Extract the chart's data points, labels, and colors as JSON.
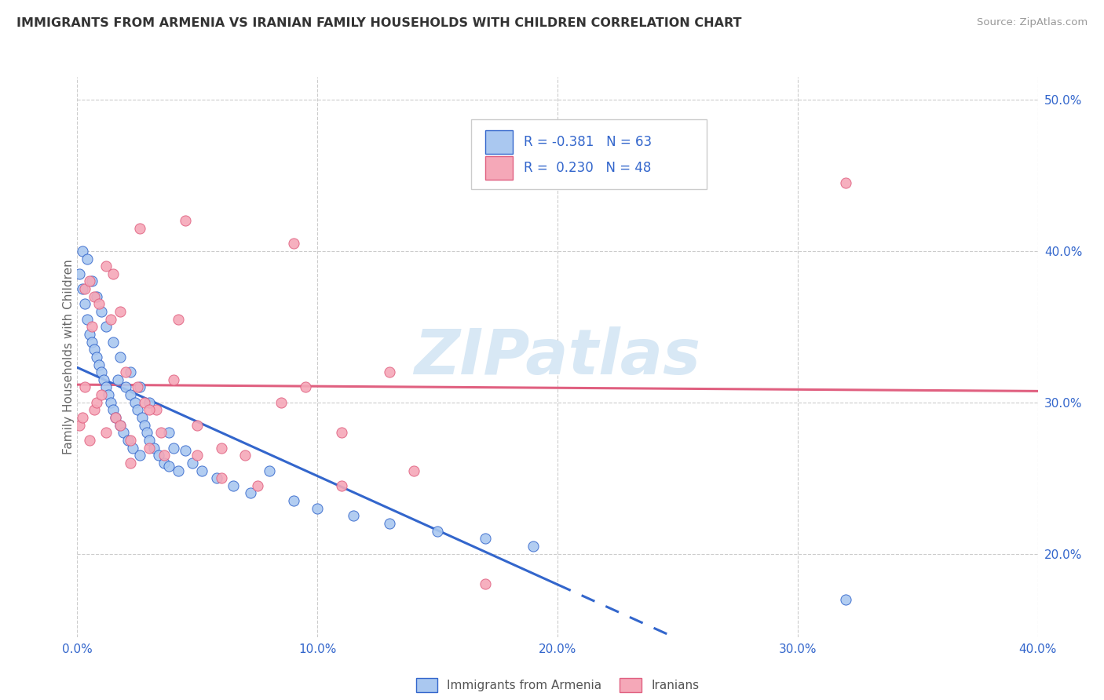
{
  "title": "IMMIGRANTS FROM ARMENIA VS IRANIAN FAMILY HOUSEHOLDS WITH CHILDREN CORRELATION CHART",
  "source": "Source: ZipAtlas.com",
  "ylabel_label": "Family Households with Children",
  "legend1_label": "R = -0.381   N = 63",
  "legend2_label": "R =  0.230   N = 48",
  "legend_bottom": [
    "Immigrants from Armenia",
    "Iranians"
  ],
  "armenia_color": "#aac8f0",
  "iran_color": "#f5a8b8",
  "armenia_line_color": "#3366cc",
  "iran_line_color": "#e06080",
  "background_color": "#ffffff",
  "grid_color": "#cccccc",
  "xlim": [
    0.0,
    0.4
  ],
  "ylim": [
    0.145,
    0.515
  ],
  "xticks": [
    0.0,
    0.1,
    0.2,
    0.3,
    0.4
  ],
  "yticks": [
    0.2,
    0.3,
    0.4,
    0.5
  ],
  "armenia_scatter_x": [
    0.001,
    0.002,
    0.003,
    0.004,
    0.005,
    0.006,
    0.007,
    0.008,
    0.009,
    0.01,
    0.011,
    0.012,
    0.013,
    0.014,
    0.015,
    0.016,
    0.017,
    0.018,
    0.019,
    0.02,
    0.021,
    0.022,
    0.023,
    0.024,
    0.025,
    0.026,
    0.027,
    0.028,
    0.029,
    0.03,
    0.032,
    0.034,
    0.036,
    0.038,
    0.04,
    0.042,
    0.045,
    0.048,
    0.052,
    0.058,
    0.065,
    0.072,
    0.08,
    0.09,
    0.1,
    0.115,
    0.13,
    0.15,
    0.17,
    0.19,
    0.002,
    0.004,
    0.006,
    0.008,
    0.01,
    0.012,
    0.015,
    0.018,
    0.022,
    0.026,
    0.03,
    0.038,
    0.32
  ],
  "armenia_scatter_y": [
    0.385,
    0.375,
    0.365,
    0.355,
    0.345,
    0.34,
    0.335,
    0.33,
    0.325,
    0.32,
    0.315,
    0.31,
    0.305,
    0.3,
    0.295,
    0.29,
    0.315,
    0.285,
    0.28,
    0.31,
    0.275,
    0.305,
    0.27,
    0.3,
    0.295,
    0.265,
    0.29,
    0.285,
    0.28,
    0.275,
    0.27,
    0.265,
    0.26,
    0.258,
    0.27,
    0.255,
    0.268,
    0.26,
    0.255,
    0.25,
    0.245,
    0.24,
    0.255,
    0.235,
    0.23,
    0.225,
    0.22,
    0.215,
    0.21,
    0.205,
    0.4,
    0.395,
    0.38,
    0.37,
    0.36,
    0.35,
    0.34,
    0.33,
    0.32,
    0.31,
    0.3,
    0.28,
    0.17
  ],
  "iran_scatter_x": [
    0.001,
    0.002,
    0.003,
    0.005,
    0.006,
    0.007,
    0.008,
    0.01,
    0.012,
    0.014,
    0.016,
    0.018,
    0.02,
    0.022,
    0.025,
    0.028,
    0.03,
    0.033,
    0.036,
    0.04,
    0.045,
    0.05,
    0.06,
    0.07,
    0.085,
    0.095,
    0.11,
    0.13,
    0.003,
    0.005,
    0.007,
    0.009,
    0.012,
    0.015,
    0.018,
    0.022,
    0.026,
    0.03,
    0.035,
    0.042,
    0.05,
    0.06,
    0.075,
    0.09,
    0.11,
    0.14,
    0.17,
    0.32
  ],
  "iran_scatter_y": [
    0.285,
    0.29,
    0.31,
    0.275,
    0.35,
    0.295,
    0.3,
    0.305,
    0.28,
    0.355,
    0.29,
    0.285,
    0.32,
    0.275,
    0.31,
    0.3,
    0.27,
    0.295,
    0.265,
    0.315,
    0.42,
    0.285,
    0.27,
    0.265,
    0.3,
    0.31,
    0.28,
    0.32,
    0.375,
    0.38,
    0.37,
    0.365,
    0.39,
    0.385,
    0.36,
    0.26,
    0.415,
    0.295,
    0.28,
    0.355,
    0.265,
    0.25,
    0.245,
    0.405,
    0.245,
    0.255,
    0.18,
    0.445
  ],
  "watermark": "ZIPatlas",
  "watermark_color": "#d8e8f5"
}
